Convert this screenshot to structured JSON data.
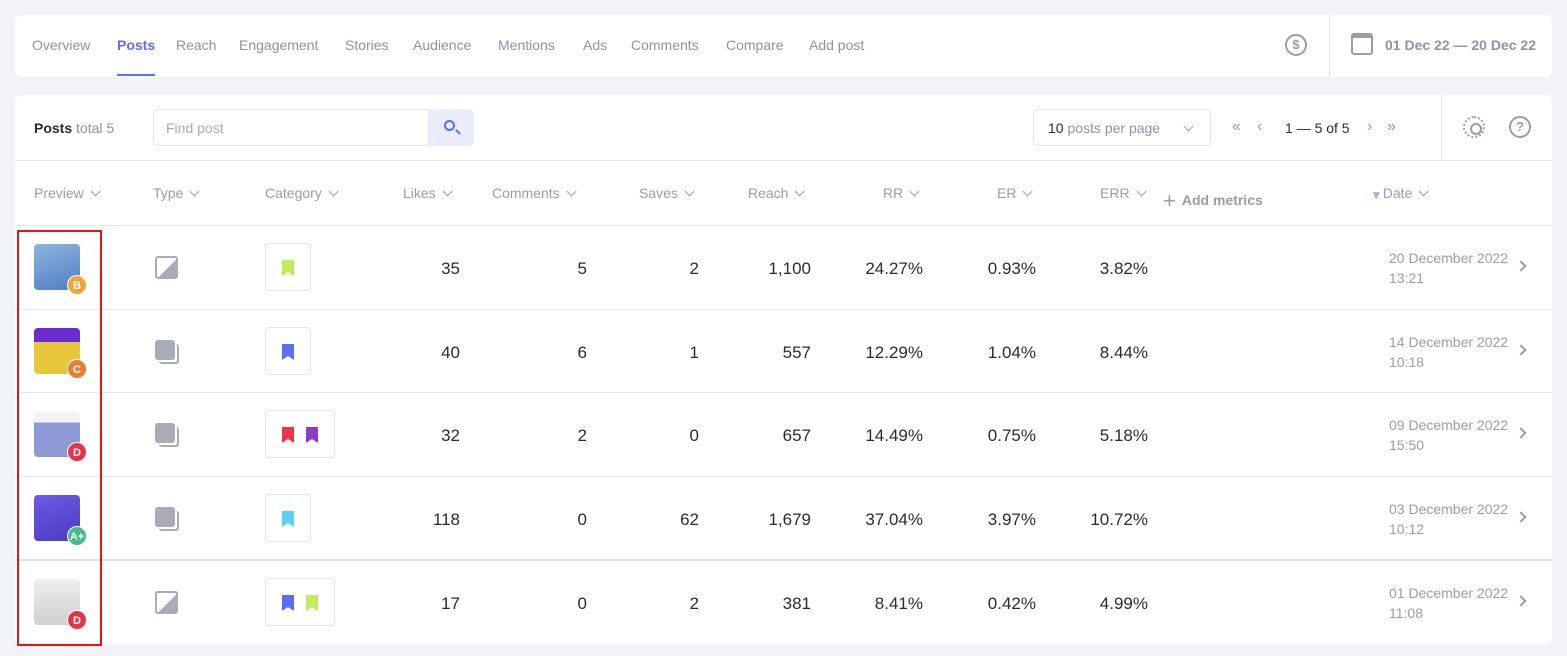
{
  "nav": {
    "tabs": [
      "Overview",
      "Posts",
      "Reach",
      "Engagement",
      "Stories",
      "Audience",
      "Mentions",
      "Ads",
      "Comments",
      "Compare",
      "Add post"
    ],
    "active": 1,
    "date_range": "01 Dec 22 — 20 Dec 22"
  },
  "toolbar": {
    "title": "Posts",
    "total": "total 5",
    "search_placeholder": "Find post",
    "per_page_num": "10",
    "per_page_text": " posts per page",
    "pagination": "1 — 5 of 5"
  },
  "columns": {
    "preview": "Preview",
    "type": "Type",
    "category": "Category",
    "likes": "Likes",
    "comments": "Comments",
    "saves": "Saves",
    "reach": "Reach",
    "rr": "RR",
    "er": "ER",
    "err": "ERR",
    "add_metrics": "Add metrics",
    "date": "Date"
  },
  "rows": [
    {
      "grade": "B",
      "grade_color": "#f0a43a",
      "type": "image",
      "categories": [
        "#c2ec5f"
      ],
      "likes": "35",
      "comments": "5",
      "saves": "2",
      "reach": "1,100",
      "rr": "24.27%",
      "er": "0.93%",
      "err": "3.82%",
      "date": "20 December 2022",
      "time": "13:21",
      "thumb": "linear-gradient(160deg,#8fb4e0,#4f7fc0)"
    },
    {
      "grade": "C",
      "grade_color": "#ea7d33",
      "type": "carousel",
      "categories": [
        "#5b6ff2"
      ],
      "likes": "40",
      "comments": "6",
      "saves": "1",
      "reach": "557",
      "rr": "12.29%",
      "er": "1.04%",
      "err": "8.44%",
      "date": "14 December 2022",
      "time": "10:18",
      "thumb": "linear-gradient(180deg,#6a2bd0 30%,#e8c73a 30%)"
    },
    {
      "grade": "D",
      "grade_color": "#e3344a",
      "type": "carousel",
      "categories": [
        "#e73746",
        "#8e3bc4"
      ],
      "likes": "32",
      "comments": "2",
      "saves": "0",
      "reach": "657",
      "rr": "14.49%",
      "er": "0.75%",
      "err": "5.18%",
      "date": "09 December 2022",
      "time": "15:50",
      "thumb": "linear-gradient(180deg,#f3f3f6 25%,#8e9ad8 25%)"
    },
    {
      "grade": "A+",
      "grade_color": "#45bb8f",
      "type": "carousel",
      "categories": [
        "#5cd1f5"
      ],
      "likes": "118",
      "comments": "0",
      "saves": "62",
      "reach": "1,679",
      "rr": "37.04%",
      "er": "3.97%",
      "err": "10.72%",
      "date": "03 December 2022",
      "time": "10:12",
      "thumb": "linear-gradient(160deg,#6b5be6,#4b3bc0)"
    },
    {
      "grade": "D",
      "grade_color": "#e3344a",
      "type": "image",
      "categories": [
        "#5b6ff2",
        "#c2ec5f"
      ],
      "likes": "17",
      "comments": "0",
      "saves": "2",
      "reach": "381",
      "rr": "8.41%",
      "er": "0.42%",
      "err": "4.99%",
      "date": "01 December 2022",
      "time": "11:08",
      "thumb": "linear-gradient(180deg,#eee,#cfcfcf)"
    }
  ]
}
